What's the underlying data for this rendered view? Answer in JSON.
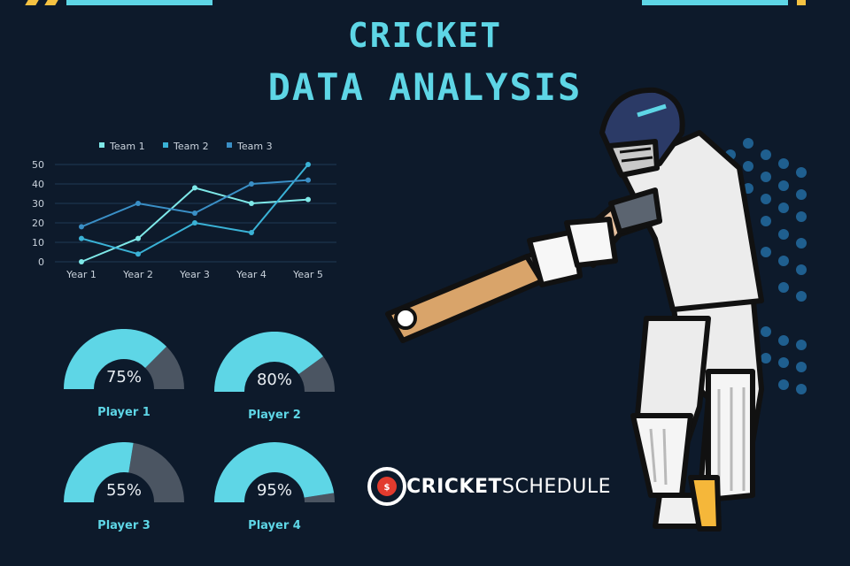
{
  "title": {
    "line1": "CRICKET",
    "line2": "DATA ANALYSIS"
  },
  "colors": {
    "background": "#0d1a2b",
    "accent": "#5ed6e6",
    "team1": "#7ee8e8",
    "team2": "#3ab2d6",
    "team3": "#3a8fc6",
    "gauge_track": "#4b5562"
  },
  "chart_data": [
    {
      "type": "line",
      "categories": [
        "Year 1",
        "Year 2",
        "Year 3",
        "Year 4",
        "Year 5"
      ],
      "series": [
        {
          "name": "Team 1",
          "values": [
            0,
            12,
            38,
            30,
            32
          ]
        },
        {
          "name": "Team 2",
          "values": [
            12,
            4,
            20,
            15,
            50
          ]
        },
        {
          "name": "Team 3",
          "values": [
            18,
            30,
            25,
            40,
            42
          ]
        }
      ],
      "yticks": [
        0,
        10,
        20,
        30,
        40,
        50
      ],
      "ylim": [
        0,
        50
      ],
      "grid": true,
      "legend_position": "top"
    },
    {
      "type": "gauge",
      "series": [
        {
          "name": "Player 1",
          "value": 75,
          "label": "75%"
        },
        {
          "name": "Player 2",
          "value": 80,
          "label": "80%"
        },
        {
          "name": "Player 3",
          "value": 55,
          "label": "55%"
        },
        {
          "name": "Player 4",
          "value": 95,
          "label": "95%"
        }
      ]
    }
  ],
  "brand": {
    "part1": "CRICKET",
    "part2": "SCHEDULE",
    "badge": "$"
  },
  "icons": {
    "logo": "cricket-ball-logo-icon",
    "illustration": "batsman-illustration"
  }
}
